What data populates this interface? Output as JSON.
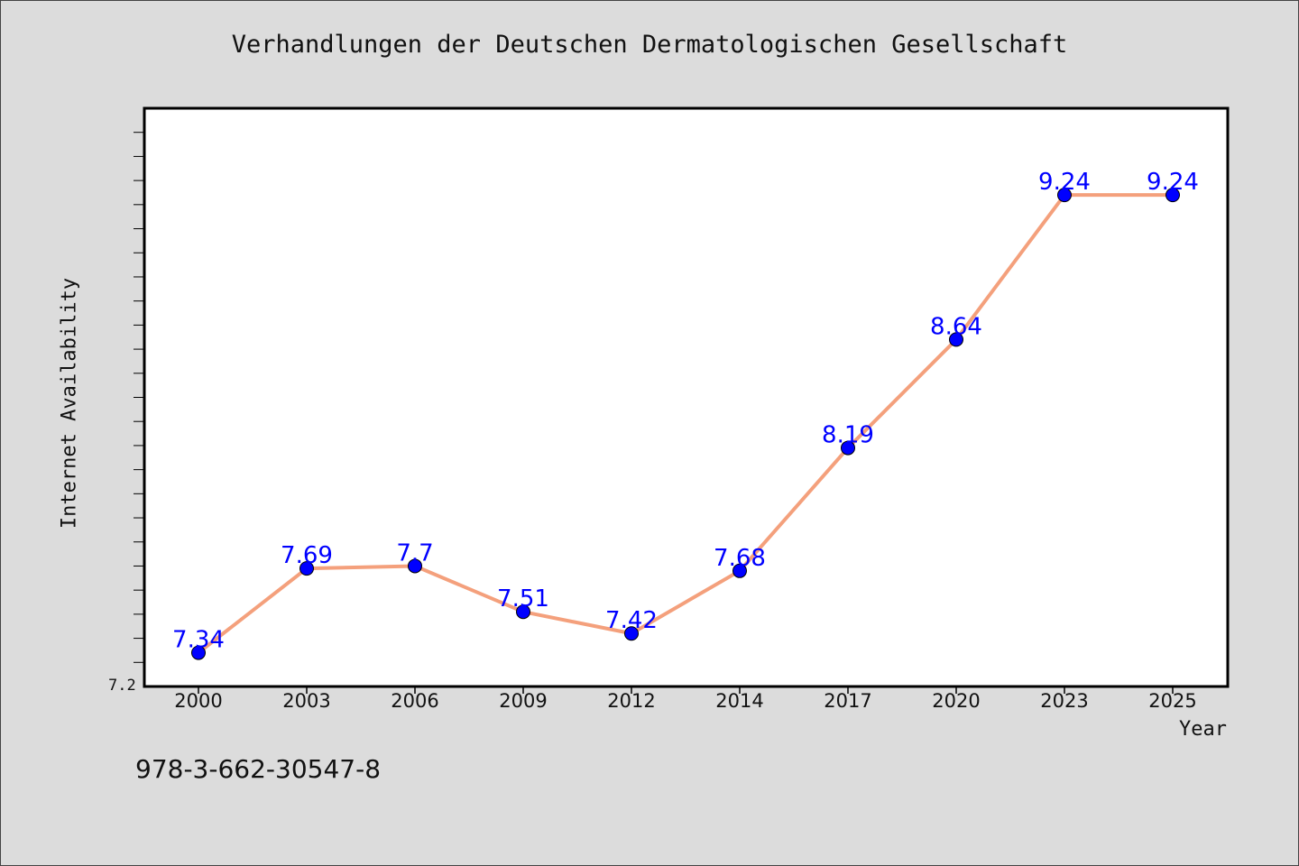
{
  "chart_data": {
    "type": "line",
    "title": "Verhandlungen der Deutschen Dermatologischen Gesellschaft",
    "xlabel": "Year",
    "ylabel": "Internet Availability",
    "categories": [
      "2000",
      "2003",
      "2006",
      "2009",
      "2012",
      "2014",
      "2017",
      "2020",
      "2023",
      "2025"
    ],
    "series": [
      {
        "values": [
          7.34,
          7.69,
          7.7,
          7.51,
          7.42,
          7.68,
          8.19,
          8.64,
          9.24,
          9.24
        ]
      }
    ],
    "data_labels": [
      "7.34",
      "7.69",
      "7.7",
      "7.51",
      "7.42",
      "7.68",
      "8.19",
      "8.64",
      "9.24",
      "9.24"
    ],
    "ylim": [
      7.2,
      9.6
    ],
    "ytick_label": "7.2",
    "grid": false,
    "colors": {
      "line": "#f4a07c",
      "marker": "#0000ff",
      "label": "#0000ff"
    }
  },
  "footer": {
    "isbn": "978-3-662-30547-8"
  }
}
